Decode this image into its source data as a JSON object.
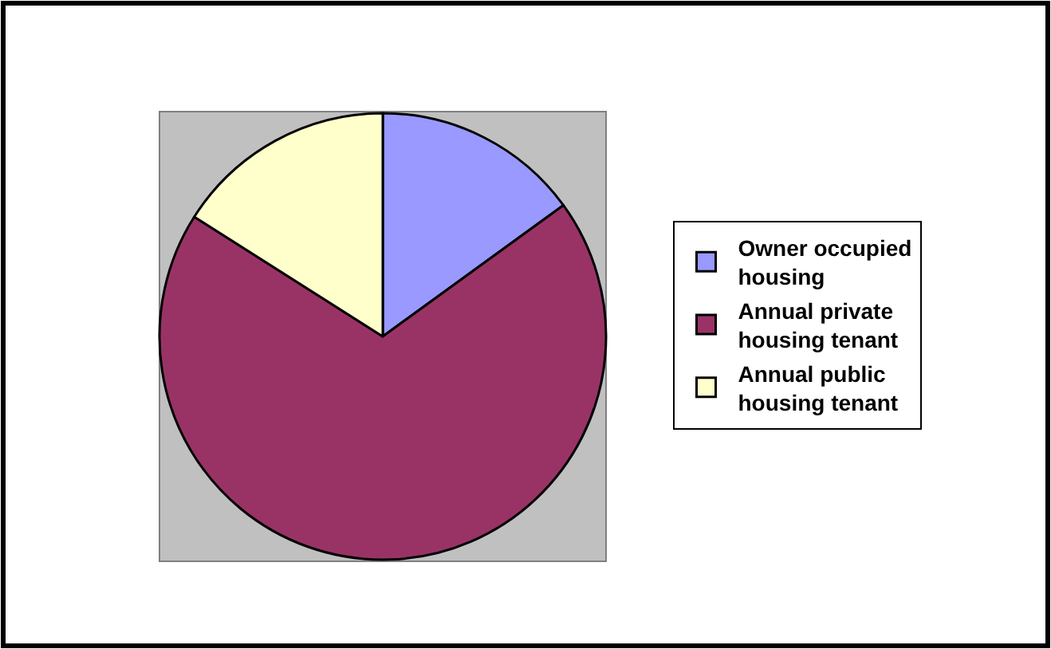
{
  "chart_data": {
    "type": "pie",
    "categories": [
      "Owner occupied housing",
      "Annual private housing tenant",
      "Annual public housing tenant"
    ],
    "values": [
      15,
      69,
      16
    ],
    "colors": [
      "#9999ff",
      "#993366",
      "#ffffcc"
    ],
    "legend": "right"
  }
}
